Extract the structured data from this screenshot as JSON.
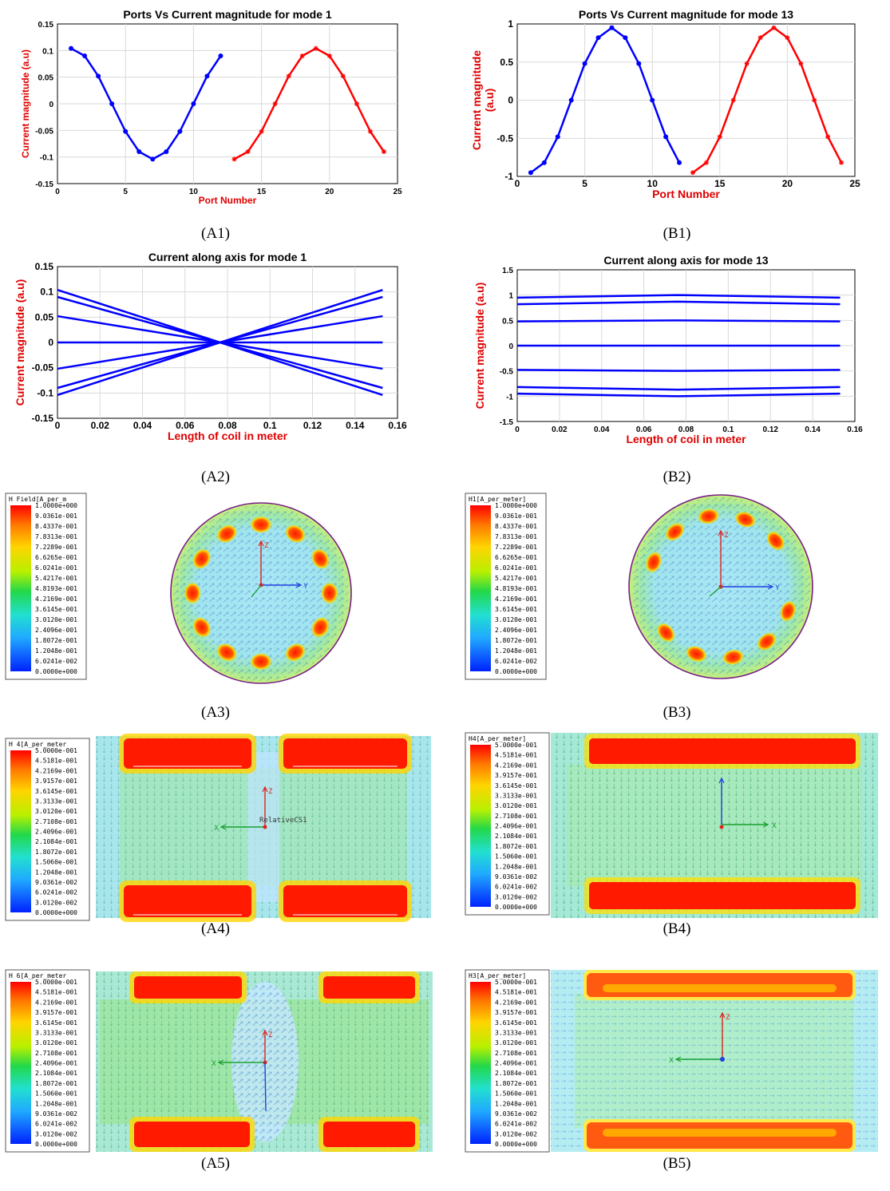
{
  "chart_data": [
    {
      "id": "A1",
      "type": "line",
      "title": "Ports Vs Current magnitude for mode 1",
      "xlabel": "Port Number",
      "ylabel": "Current magnitude (a.u)",
      "xlim": [
        0,
        25
      ],
      "ylim": [
        -0.15,
        0.15
      ],
      "xticks": [
        "0",
        "5",
        "10",
        "15",
        "20",
        "25"
      ],
      "yticks": [
        "0.15",
        "0.1",
        "0.05",
        "0",
        "-0.05",
        "-0.1",
        "-0.15"
      ],
      "grid": true,
      "series": [
        {
          "color": "#0000ff",
          "marker": "dot",
          "x": [
            1,
            2,
            3,
            4,
            5,
            6,
            7,
            8,
            9,
            10,
            11,
            12
          ],
          "y": [
            0.104,
            0.09,
            0.052,
            0.0,
            -0.052,
            -0.09,
            -0.104,
            -0.09,
            -0.052,
            0.0,
            0.052,
            0.09
          ]
        },
        {
          "color": "#ff0000",
          "marker": "star",
          "x": [
            13,
            14,
            15,
            16,
            17,
            18,
            19,
            20,
            21,
            22,
            23,
            24
          ],
          "y": [
            -0.104,
            -0.09,
            -0.052,
            0.0,
            0.052,
            0.09,
            0.104,
            0.09,
            0.052,
            0.0,
            -0.052,
            -0.09
          ]
        }
      ]
    },
    {
      "id": "B1",
      "type": "line",
      "title": "Ports Vs Current magnitude for mode 13",
      "xlabel": "Port Number",
      "ylabel": "Current magnitude (a.u)",
      "xlim": [
        0,
        25
      ],
      "ylim": [
        -1,
        1
      ],
      "xticks": [
        "0",
        "5",
        "10",
        "15",
        "20",
        "25"
      ],
      "yticks": [
        "1",
        "0.5",
        "0",
        "-0.5",
        "-1"
      ],
      "grid": true,
      "series": [
        {
          "color": "#0000ff",
          "marker": "dot",
          "x": [
            1,
            2,
            3,
            4,
            5,
            6,
            7,
            8,
            9,
            10,
            11,
            12
          ],
          "y": [
            -0.95,
            -0.82,
            -0.48,
            0.0,
            0.48,
            0.82,
            0.95,
            0.82,
            0.48,
            0.0,
            -0.48,
            -0.82
          ]
        },
        {
          "color": "#ff0000",
          "marker": "star",
          "x": [
            13,
            14,
            15,
            16,
            17,
            18,
            19,
            20,
            21,
            22,
            23,
            24
          ],
          "y": [
            -0.95,
            -0.82,
            -0.48,
            0.0,
            0.48,
            0.82,
            0.95,
            0.82,
            0.48,
            0.0,
            -0.48,
            -0.82
          ]
        }
      ]
    },
    {
      "id": "A2",
      "type": "line",
      "title": "Current along axis for mode 1",
      "xlabel": "Length of coil in meter",
      "ylabel": "Current magnitude (a.u)",
      "xlim": [
        0,
        0.16
      ],
      "ylim": [
        -0.15,
        0.15
      ],
      "xticks": [
        "0",
        "0.02",
        "0.04",
        "0.06",
        "0.08",
        "0.1",
        "0.12",
        "0.14",
        "0.16"
      ],
      "yticks": [
        "0.15",
        "0.1",
        "0.05",
        "0",
        "-0.05",
        "-0.1",
        "-0.15"
      ],
      "grid": true,
      "series": [
        {
          "color": "#0000ff",
          "x": [
            0,
            0.153
          ],
          "y": [
            0.104,
            -0.104
          ]
        },
        {
          "color": "#0000ff",
          "x": [
            0,
            0.153
          ],
          "y": [
            0.09,
            -0.09
          ]
        },
        {
          "color": "#0000ff",
          "x": [
            0,
            0.153
          ],
          "y": [
            0.052,
            -0.052
          ]
        },
        {
          "color": "#0000ff",
          "x": [
            0,
            0.153
          ],
          "y": [
            0.0,
            0.0
          ]
        },
        {
          "color": "#0000ff",
          "x": [
            0,
            0.153
          ],
          "y": [
            -0.052,
            0.052
          ]
        },
        {
          "color": "#0000ff",
          "x": [
            0,
            0.153
          ],
          "y": [
            -0.09,
            0.09
          ]
        },
        {
          "color": "#0000ff",
          "x": [
            0,
            0.153
          ],
          "y": [
            -0.104,
            0.104
          ]
        }
      ]
    },
    {
      "id": "B2",
      "type": "line",
      "title": "Current along axis for mode 13",
      "xlabel": "Length of coil in meter",
      "ylabel": "Current magnitude (a.u)",
      "xlim": [
        0,
        0.16
      ],
      "ylim": [
        -1.5,
        1.5
      ],
      "xticks": [
        "0",
        "0.02",
        "0.04",
        "0.06",
        "0.08",
        "0.1",
        "0.12",
        "0.14",
        "0.16"
      ],
      "yticks": [
        "1.5",
        "1",
        "0.5",
        "0",
        "-0.5",
        "-1",
        "-1.5"
      ],
      "grid": true,
      "series": [
        {
          "color": "#0000ff",
          "x": [
            0,
            0.076,
            0.153
          ],
          "y": [
            0.95,
            1.0,
            0.95
          ]
        },
        {
          "color": "#0000ff",
          "x": [
            0,
            0.076,
            0.153
          ],
          "y": [
            0.82,
            0.87,
            0.82
          ]
        },
        {
          "color": "#0000ff",
          "x": [
            0,
            0.076,
            0.153
          ],
          "y": [
            0.48,
            0.5,
            0.48
          ]
        },
        {
          "color": "#0000ff",
          "x": [
            0,
            0.076,
            0.153
          ],
          "y": [
            0.0,
            0.0,
            0.0
          ]
        },
        {
          "color": "#0000ff",
          "x": [
            0,
            0.076,
            0.153
          ],
          "y": [
            -0.48,
            -0.5,
            -0.48
          ]
        },
        {
          "color": "#0000ff",
          "x": [
            0,
            0.076,
            0.153
          ],
          "y": [
            -0.82,
            -0.87,
            -0.82
          ]
        },
        {
          "color": "#0000ff",
          "x": [
            0,
            0.076,
            0.153
          ],
          "y": [
            -0.95,
            -1.0,
            -0.95
          ]
        }
      ]
    }
  ],
  "captions": {
    "A1": "(A1)",
    "B1": "(B1)",
    "A2": "(A2)",
    "B2": "(B2)",
    "A3": "(A3)",
    "B3": "(B3)",
    "A4": "(A4)",
    "B4": "(B4)",
    "A5": "(A5)",
    "B5": "(B5)"
  },
  "colorbars": [
    {
      "id": "A3",
      "title": "H Field[A_per_m",
      "labels": [
        "1.0000e+000",
        "9.0361e-001",
        "8.4337e-001",
        "7.8313e-001",
        "7.2289e-001",
        "6.6265e-001",
        "6.0241e-001",
        "5.4217e-001",
        "4.8193e-001",
        "4.2169e-001",
        "3.6145e-001",
        "3.0120e-001",
        "2.4096e-001",
        "1.8072e-001",
        "1.2048e-001",
        "6.0241e-002",
        "0.0000e+000"
      ]
    },
    {
      "id": "B3",
      "title": "H1[A_per_meter]",
      "labels": [
        "1.0000e+000",
        "9.0361e-001",
        "8.4337e-001",
        "7.8313e-001",
        "7.2289e-001",
        "6.6265e-001",
        "6.0241e-001",
        "5.4217e-001",
        "4.8193e-001",
        "4.2169e-001",
        "3.6145e-001",
        "3.0120e-001",
        "2.4096e-001",
        "1.8072e-001",
        "1.2048e-001",
        "6.0241e-002",
        "0.0000e+000"
      ]
    },
    {
      "id": "A4",
      "title": "H 4[A_per_meter",
      "labels": [
        "5.0000e-001",
        "4.5181e-001",
        "4.2169e-001",
        "3.9157e-001",
        "3.6145e-001",
        "3.3133e-001",
        "3.0120e-001",
        "2.7108e-001",
        "2.4096e-001",
        "2.1084e-001",
        "1.8072e-001",
        "1.5060e-001",
        "1.2048e-001",
        "9.0361e-002",
        "6.0241e-002",
        "3.0120e-002",
        "0.0000e+000"
      ]
    },
    {
      "id": "B4",
      "title": "H4[A_per_meter]",
      "labels": [
        "5.0000e-001",
        "4.5181e-001",
        "4.2169e-001",
        "3.9157e-001",
        "3.6145e-001",
        "3.3133e-001",
        "3.0120e-001",
        "2.7108e-001",
        "2.4096e-001",
        "2.1084e-001",
        "1.8072e-001",
        "1.5060e-001",
        "1.2048e-001",
        "9.0361e-002",
        "6.0241e-002",
        "3.0120e-002",
        "0.0000e+000"
      ]
    },
    {
      "id": "A5",
      "title": "H 6[A_per_meter",
      "labels": [
        "5.0000e-001",
        "4.5181e-001",
        "4.2169e-001",
        "3.9157e-001",
        "3.6145e-001",
        "3.3133e-001",
        "3.0120e-001",
        "2.7108e-001",
        "2.4096e-001",
        "2.1084e-001",
        "1.8072e-001",
        "1.5060e-001",
        "1.2048e-001",
        "9.0361e-002",
        "6.0241e-002",
        "3.0120e-002",
        "0.0000e+000"
      ]
    },
    {
      "id": "B5",
      "title": "H3[A_per_meter]",
      "labels": [
        "5.0000e-001",
        "4.5181e-001",
        "4.2169e-001",
        "3.9157e-001",
        "3.6145e-001",
        "3.3133e-001",
        "3.0120e-001",
        "2.7108e-001",
        "2.4096e-001",
        "2.1084e-001",
        "1.8072e-001",
        "1.5060e-001",
        "1.2048e-001",
        "9.0361e-002",
        "6.0241e-002",
        "3.0120e-002",
        "0.0000e+000"
      ]
    }
  ],
  "field_labels": {
    "A4_cs": "RelativeCS1",
    "axis_z": "Z",
    "axis_y": "Y",
    "axis_x": "X"
  },
  "colors": {
    "blue_series": "#0000ff",
    "red_series": "#ff0000",
    "label_red": "#e00000",
    "field_bg": "#9fe3f0",
    "field_hot": "#ff1a00"
  }
}
